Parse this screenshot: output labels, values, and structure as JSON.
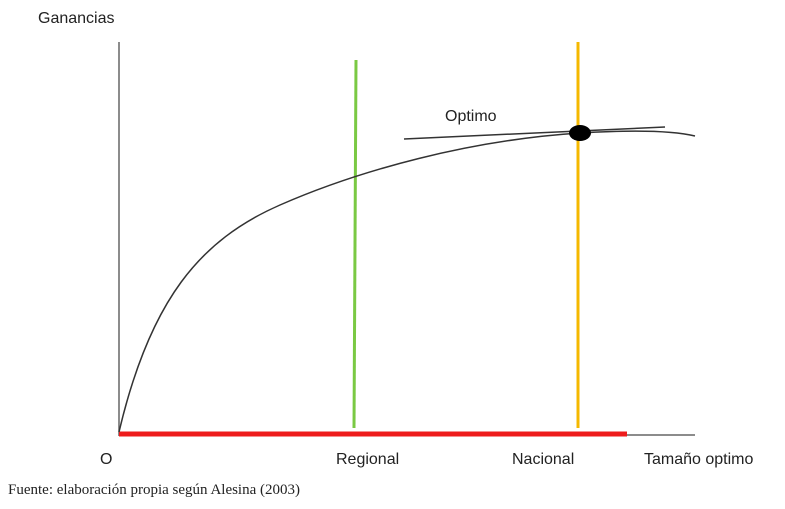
{
  "y_axis_label": "Ganancias",
  "origin_label": "O",
  "x_axis_label": "Tamaño optimo",
  "optimum_label": "Optimo",
  "markers": [
    {
      "key": "regional",
      "label": "Regional",
      "color": "#7ac943"
    },
    {
      "key": "nacional",
      "label": "Nacional",
      "color": "#f5b800"
    }
  ],
  "colors": {
    "axis": "#666666",
    "curve": "#333333",
    "tangent": "#333333",
    "optimum_point": "#000000",
    "red_segment": "#ee1c1c"
  },
  "caption": "Fuente: elaboración propia según Alesina (2003)"
}
